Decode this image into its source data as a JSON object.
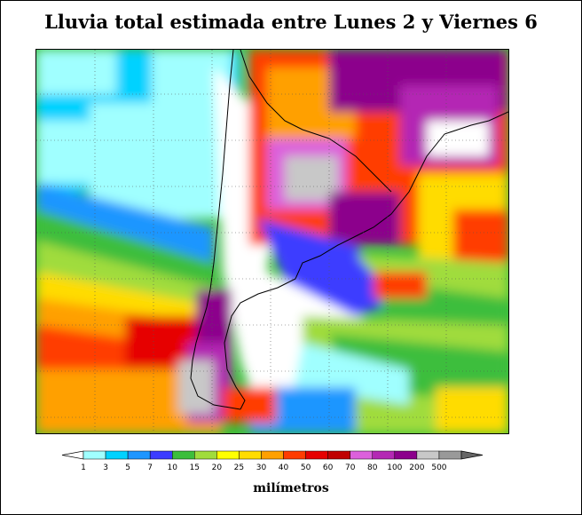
{
  "title": "Lluvia total estimada entre Lunes 2 y Viernes 6",
  "legend": {
    "units": "milímetros",
    "ticks": [
      "1",
      "3",
      "5",
      "7",
      "10",
      "15",
      "20",
      "25",
      "30",
      "40",
      "50",
      "60",
      "70",
      "80",
      "100",
      "200",
      "500"
    ],
    "colors": [
      "#a0ffff",
      "#00d2ff",
      "#1e96ff",
      "#3c3cff",
      "#3cbe3c",
      "#a0dc3c",
      "#ffff00",
      "#ffdc00",
      "#ffa000",
      "#ff3c00",
      "#e60000",
      "#c00000",
      "#dc60dc",
      "#b428b4",
      "#8c008c",
      "#c8c8c8",
      "#999999"
    ],
    "below_color": "#ffffff",
    "above_color": "#666666"
  }
}
